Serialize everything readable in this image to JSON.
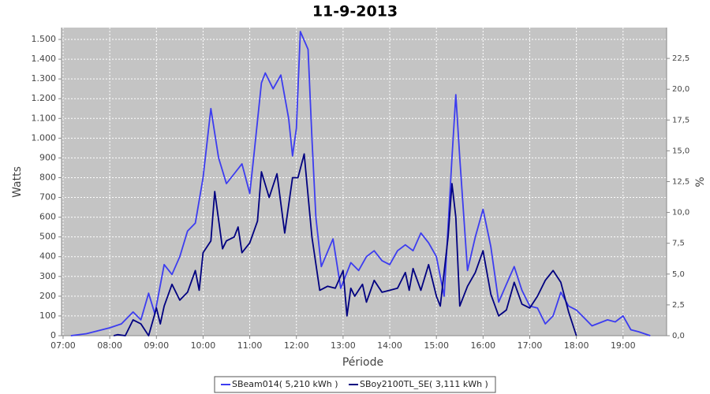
{
  "chart_data": {
    "type": "line",
    "title": "11-9-2013",
    "x_label": "Période",
    "y_label": "Watts",
    "y2_label": "%",
    "grid": true,
    "legend": "bottom",
    "xlim": [
      418,
      1196
    ],
    "xticks": [
      {
        "value": 420,
        "label": "07:00"
      },
      {
        "value": 480,
        "label": "08:00"
      },
      {
        "value": 540,
        "label": "09:00"
      },
      {
        "value": 600,
        "label": "10:00"
      },
      {
        "value": 660,
        "label": "11:00"
      },
      {
        "value": 720,
        "label": "12:00"
      },
      {
        "value": 780,
        "label": "13:00"
      },
      {
        "value": 840,
        "label": "14:00"
      },
      {
        "value": 900,
        "label": "15:00"
      },
      {
        "value": 960,
        "label": "16:00"
      },
      {
        "value": 1020,
        "label": "17:00"
      },
      {
        "value": 1080,
        "label": "18:00"
      },
      {
        "value": 1140,
        "label": "19:00"
      }
    ],
    "ylim": [
      0,
      1560
    ],
    "yticks": [
      0,
      100,
      200,
      300,
      400,
      500,
      600,
      700,
      800,
      900,
      {
        "value": 1000,
        "label": "1.000"
      },
      {
        "value": 1100,
        "label": "1.100"
      },
      {
        "value": 1200,
        "label": "1.200"
      },
      {
        "value": 1300,
        "label": "1.300"
      },
      {
        "value": 1400,
        "label": "1.400"
      },
      {
        "value": 1500,
        "label": "1.500"
      }
    ],
    "y2lim": [
      0,
      25
    ],
    "y2ticks": [
      {
        "value": 0,
        "label": "0,0"
      },
      {
        "value": 2.5,
        "label": "2,5"
      },
      {
        "value": 5,
        "label": "5,0"
      },
      {
        "value": 7.5,
        "label": "7,5"
      },
      {
        "value": 10,
        "label": "10,0"
      },
      {
        "value": 12.5,
        "label": "12,5"
      },
      {
        "value": 15,
        "label": "15,0"
      },
      {
        "value": 17.5,
        "label": "17,5"
      },
      {
        "value": 20,
        "label": "20,0"
      },
      {
        "value": 22.5,
        "label": "22,5"
      }
    ],
    "series": [
      {
        "name": "SBeam014( 5,210 kWh )",
        "color": "#3c3cf0",
        "x": [
          430,
          450,
          480,
          495,
          510,
          520,
          530,
          538,
          550,
          560,
          570,
          580,
          590,
          600,
          610,
          620,
          630,
          640,
          650,
          660,
          665,
          675,
          680,
          690,
          700,
          710,
          715,
          720,
          725,
          735,
          740,
          745,
          752,
          767,
          777,
          790,
          800,
          810,
          820,
          830,
          840,
          850,
          860,
          870,
          880,
          890,
          900,
          905,
          910,
          920,
          925,
          930,
          940,
          950,
          960,
          970,
          980,
          990,
          1000,
          1010,
          1020,
          1030,
          1040,
          1050,
          1060,
          1070,
          1080,
          1090,
          1100,
          1120,
          1130,
          1140,
          1150,
          1160,
          1175
        ],
        "values": [
          0,
          10,
          40,
          60,
          120,
          80,
          215,
          110,
          360,
          310,
          400,
          530,
          570,
          800,
          1150,
          900,
          770,
          820,
          870,
          720,
          900,
          1280,
          1330,
          1250,
          1320,
          1100,
          910,
          1050,
          1540,
          1450,
          1000,
          600,
          350,
          490,
          240,
          370,
          330,
          400,
          430,
          380,
          360,
          430,
          460,
          430,
          520,
          470,
          400,
          300,
          200,
          900,
          1220,
          900,
          330,
          500,
          640,
          450,
          170,
          260,
          350,
          230,
          150,
          140,
          60,
          100,
          220,
          150,
          130,
          90,
          50,
          80,
          70,
          100,
          30,
          20,
          0
        ]
      },
      {
        "name": "SBoy2100TL_SE( 3,111 kWh )",
        "color": "#000080",
        "x": [
          485,
          490,
          500,
          510,
          520,
          530,
          540,
          545,
          550,
          560,
          570,
          580,
          590,
          595,
          600,
          610,
          615,
          625,
          630,
          640,
          645,
          650,
          660,
          670,
          675,
          685,
          695,
          705,
          715,
          722,
          730,
          740,
          750,
          760,
          770,
          780,
          785,
          790,
          795,
          805,
          810,
          820,
          830,
          840,
          850,
          860,
          865,
          870,
          880,
          890,
          900,
          905,
          915,
          920,
          925,
          930,
          940,
          950,
          960,
          970,
          980,
          990,
          1000,
          1010,
          1020,
          1030,
          1040,
          1050,
          1060,
          1070,
          1080
        ],
        "values": [
          0,
          5,
          0,
          80,
          60,
          0,
          140,
          60,
          150,
          260,
          180,
          220,
          330,
          230,
          420,
          480,
          730,
          440,
          480,
          500,
          550,
          420,
          470,
          580,
          830,
          700,
          820,
          520,
          800,
          800,
          920,
          500,
          230,
          250,
          240,
          330,
          100,
          240,
          200,
          260,
          170,
          280,
          220,
          230,
          240,
          320,
          230,
          340,
          230,
          360,
          200,
          150,
          500,
          770,
          600,
          150,
          250,
          320,
          430,
          210,
          100,
          130,
          270,
          160,
          140,
          200,
          280,
          330,
          270,
          120,
          0
        ]
      }
    ]
  }
}
